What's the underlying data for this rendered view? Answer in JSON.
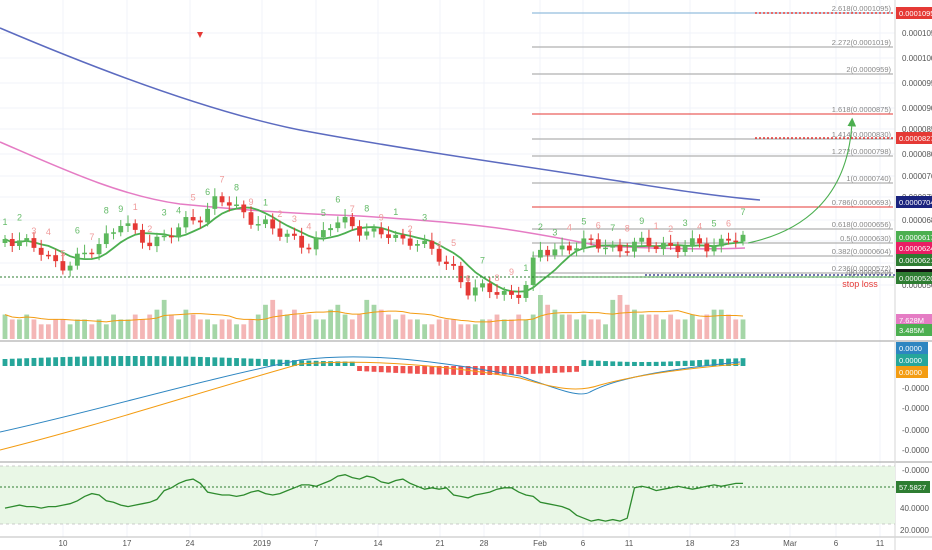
{
  "chart_data": {
    "type": "candlestick",
    "colors": {
      "up": "#5cb85c",
      "down": "#e53935",
      "ma_blue": "#5c6bc0",
      "ma_pink": "#e57cc4",
      "ma_green": "#4caf50",
      "macd_line": "#2e86c1",
      "signal_line": "#f39c12",
      "rsi_line": "#2e8b2e",
      "rsi_fill": "#e9f7e6",
      "hist_up": "#26a69a",
      "hist_down": "#ef5350"
    },
    "x_labels": [
      "10",
      "17",
      "24",
      "2019",
      "7",
      "14",
      "21",
      "28",
      "Feb",
      "6",
      "11",
      "18",
      "23",
      "Mar",
      "6",
      "11"
    ],
    "price_labels": [
      "0.0001050",
      "0.0001000",
      "0.0000950",
      "0.0000900",
      "0.0000850",
      "0.0000800",
      "0.0000760",
      "0.0000720",
      "0.0000680",
      "0.0000640",
      "0.0000600",
      "0.0000560"
    ],
    "fib_levels": [
      {
        "label": "2.618(0.0001095)",
        "color": "#7aaed6"
      },
      {
        "label": "2.272(0.0001019)",
        "color": "#9e9e9e"
      },
      {
        "label": "2(0.0000959)",
        "color": "#9e9e9e"
      },
      {
        "label": "1.618(0.0000875)",
        "color": "#e53935"
      },
      {
        "label": "1.414(0.0000830)",
        "color": "#9e9e9e"
      },
      {
        "label": "1.272(0.0000798)",
        "color": "#9e9e9e"
      },
      {
        "label": "1(0.0000740)",
        "color": "#9e9e9e"
      },
      {
        "label": "0.786(0.0000693)",
        "color": "#e53935"
      },
      {
        "label": "0.618(0.0000656)",
        "color": "#9e9e9e"
      },
      {
        "label": "0.5(0.0000630)",
        "color": "#9e9e9e"
      },
      {
        "label": "0.382(0.0000604)",
        "color": "#9e9e9e"
      },
      {
        "label": "0.236(0.0000572)",
        "color": "#9e9e9e"
      },
      {
        "label": "0(0.0000520)",
        "color": "#4caf50"
      }
    ],
    "price_tags": [
      {
        "text": "0.0001095",
        "color": "#e53935"
      },
      {
        "text": "0.0000827",
        "color": "#e53935"
      },
      {
        "text": "0.0000704",
        "color": "#1a237e"
      },
      {
        "text": "0.0000617",
        "color": "#4caf50"
      },
      {
        "text": "0.0000624",
        "color": "#e91e63"
      },
      {
        "text": "0.0000621",
        "color": "#2e7d32"
      },
      {
        "text": "0.0000572",
        "color": "#111111"
      },
      {
        "text": "0.0000520",
        "color": "#2e7d32"
      }
    ],
    "annotation": "stop loss",
    "volume": {
      "tags": [
        {
          "text": "7.628M",
          "color": "#e57cc4"
        },
        {
          "text": "3.485M",
          "color": "#4caf50"
        }
      ],
      "values": [
        5,
        4,
        4,
        5,
        4,
        3,
        3,
        4,
        4,
        3,
        4,
        4,
        3,
        4,
        3,
        5,
        4,
        4,
        5,
        4,
        5,
        6,
        8,
        5,
        4,
        6,
        5,
        4,
        4,
        3,
        4,
        4,
        3,
        3,
        4,
        5,
        7,
        8,
        6,
        5,
        6,
        5,
        5,
        4,
        4,
        6,
        7,
        5,
        4,
        5,
        8,
        7,
        6,
        5,
        4,
        5,
        4,
        4,
        3,
        3,
        4,
        4,
        4,
        3,
        3,
        3,
        4,
        4,
        5,
        4,
        4,
        5,
        4,
        5,
        9,
        7,
        6,
        5,
        5,
        4,
        5,
        4,
        4,
        3,
        8,
        9,
        7,
        6,
        5,
        5,
        5,
        4,
        5,
        4,
        4,
        5,
        4,
        5,
        6,
        6,
        5,
        4,
        4
      ]
    },
    "macd": {
      "labels": [
        "0.0000",
        "0.0000",
        "-0.0000",
        "-0.0000",
        "-0.0000",
        "-0.0000",
        "-0.0000"
      ],
      "tags": [
        {
          "text": "0.0000",
          "color": "#2e86c1"
        },
        {
          "text": "0.0000",
          "color": "#26a69a"
        },
        {
          "text": "0.0000",
          "color": "#f39c12"
        }
      ]
    },
    "rsi": {
      "labels": [
        "40.0000",
        "20.0000"
      ],
      "value_tag": "57.5827",
      "values": [
        41,
        42,
        43,
        42,
        42,
        41,
        42,
        42,
        43,
        44,
        46,
        49,
        51,
        50,
        46,
        45,
        43,
        42,
        43,
        44,
        45,
        47,
        53,
        55,
        58,
        60,
        61,
        58,
        52,
        51,
        50,
        50,
        49,
        50,
        52,
        53,
        51,
        50,
        51,
        53,
        55,
        57,
        57,
        56,
        58,
        60,
        63,
        64,
        62,
        61,
        63,
        62,
        59,
        58,
        60,
        61,
        58,
        56,
        54,
        55,
        54,
        55,
        50,
        49,
        48,
        50,
        51,
        52,
        54,
        55,
        55,
        52,
        50,
        49,
        45,
        44,
        43,
        42,
        40,
        36,
        34,
        32,
        33,
        32,
        33,
        32,
        34,
        55,
        56,
        55,
        53,
        54,
        55,
        56,
        55,
        54,
        55,
        56,
        57,
        56,
        57,
        58,
        58
      ]
    }
  }
}
